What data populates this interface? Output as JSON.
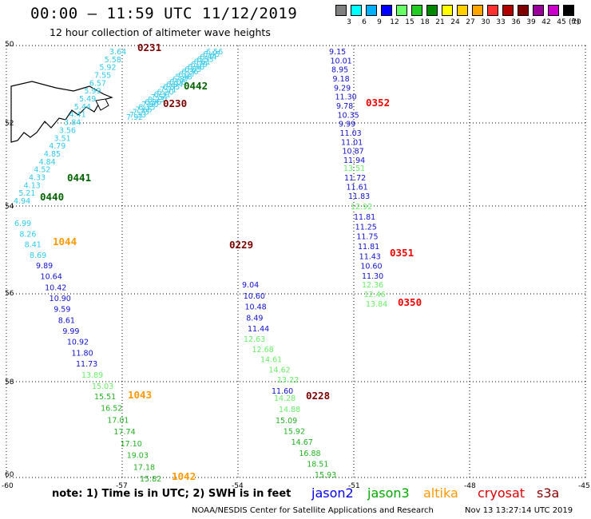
{
  "title": "00:00 – 11:59 UTC 11/12/2019",
  "subtitle": "12 hour collection of altimeter wave heights",
  "scale": {
    "labels": [
      "3",
      "6",
      "9",
      "12",
      "15",
      "18",
      "21",
      "24",
      "27",
      "30",
      "33",
      "36",
      "39",
      "42",
      "45",
      "70"
    ],
    "unit": "(ft)",
    "colors": [
      "#808080",
      "#00ffff",
      "#00b0ff",
      "#0000ff",
      "#66ff66",
      "#22cc22",
      "#008800",
      "#ffff00",
      "#ffd000",
      "#ffa500",
      "#ff3030",
      "#b00000",
      "#800000",
      "#990099",
      "#cc00cc",
      "#000000"
    ]
  },
  "axes": {
    "lat_labels": [
      "50",
      "52",
      "54",
      "56",
      "58",
      "60"
    ],
    "lon_labels": [
      "-57",
      "-54",
      "-51",
      "-48",
      "-45"
    ],
    "corner_left": "-60",
    "corner_right": "-45"
  },
  "colors": {
    "cyan": "#2fc8ea",
    "green_light": "#66ee66",
    "green": "#22b022",
    "blue": "#1010cc",
    "dark_red": "#7a0000",
    "red": "#ee0000",
    "orange": "#ff9900",
    "dark_green": "#006400"
  },
  "tracks": [
    {
      "color": "cyan",
      "values": [
        "3.64",
        "5.58",
        "5.92",
        "7.55",
        "6.57",
        "5.99",
        "5.49",
        "5.44",
        "4.41",
        "3.84",
        "3.56",
        "3.51",
        "4.79",
        "4.85",
        "4.84",
        "4.52",
        "4.33",
        "4.13",
        "5.21",
        "4.94"
      ]
    },
    {
      "color": "cyan",
      "values": [
        "6.56",
        "6.45",
        "6.44",
        "6.53",
        "6.61",
        "6.79",
        "6.48",
        "6.63",
        "6.36",
        "6.27",
        "5.48",
        "6.87",
        "6.08",
        "6.04",
        "6.55",
        "7.71",
        "6.20",
        "6.31",
        "7.54",
        "8.23",
        "6.86",
        "7.60",
        "8.15",
        "7.65",
        "7.73",
        "7.33",
        "7.92"
      ]
    },
    {
      "color": "blue",
      "values": [
        "9.04",
        "10.60",
        "10.48",
        "8.49",
        "11.44"
      ]
    },
    {
      "color": "green_light",
      "values": [
        "12.63",
        "12.68",
        "14.61",
        "14.62",
        "13.22"
      ]
    },
    {
      "color": "blue",
      "values": [
        "11.60"
      ]
    },
    {
      "color": "green_light",
      "values": [
        "14.28",
        "14.88"
      ]
    },
    {
      "color": "green",
      "values": [
        "15.09",
        "15.92",
        "14.67",
        "16.88",
        "18.51",
        "15.93"
      ]
    },
    {
      "color": "blue",
      "values": [
        "9.15",
        "10.01",
        "8.95",
        "9.18",
        "9.29",
        "11.30",
        "9.78",
        "10.35",
        "9.99",
        "11.03",
        "11.01",
        "10.87",
        "11.94"
      ]
    },
    {
      "color": "green_light",
      "values": [
        "13.51"
      ]
    },
    {
      "color": "blue",
      "values": [
        "11.72",
        "11.61",
        "11.83"
      ]
    },
    {
      "color": "green_light",
      "values": [
        "12.92"
      ]
    },
    {
      "color": "blue",
      "values": [
        "11.81",
        "11.25",
        "11.75",
        "11.81",
        "11.43",
        "10.60",
        "11.30"
      ]
    },
    {
      "color": "green_light",
      "values": [
        "12.36",
        "12.46",
        "13.84"
      ]
    },
    {
      "color": "cyan",
      "values": [
        "6.99",
        "8.26",
        "8.41",
        "8.69"
      ]
    },
    {
      "color": "blue",
      "values": [
        "9.89",
        "10.64",
        "10.42",
        "10.90",
        "9.59",
        "8.61",
        "9.99",
        "10.92",
        "11.80",
        "11.73"
      ]
    },
    {
      "color": "green_light",
      "values": [
        "13.89",
        "15.03"
      ]
    },
    {
      "color": "green",
      "values": [
        "15.51",
        "16.52",
        "17.01",
        "17.74",
        "17.10",
        "19.03",
        "17.18",
        "15.82"
      ]
    }
  ],
  "time_labels": [
    {
      "text": "0231",
      "color": "dark_red"
    },
    {
      "text": "0442",
      "color": "dark_green"
    },
    {
      "text": "0230",
      "color": "dark_red"
    },
    {
      "text": "0441",
      "color": "dark_green"
    },
    {
      "text": "0440",
      "color": "dark_green"
    },
    {
      "text": "0352",
      "color": "red"
    },
    {
      "text": "0229",
      "color": "dark_red"
    },
    {
      "text": "0351",
      "color": "red"
    },
    {
      "text": "0350",
      "color": "red"
    },
    {
      "text": "1044",
      "color": "orange"
    },
    {
      "text": "1043",
      "color": "orange"
    },
    {
      "text": "1042",
      "color": "orange"
    },
    {
      "text": "0228",
      "color": "dark_red"
    }
  ],
  "note": "note:  1) Time is in UTC;  2) SWH is in feet",
  "legend": [
    {
      "label": "jason2",
      "color": "#0000ee"
    },
    {
      "label": "jason3",
      "color": "#00aa00"
    },
    {
      "label": "altika",
      "color": "#ff9900"
    },
    {
      "label": "cryosat",
      "color": "#dd0000"
    },
    {
      "label": "s3a",
      "color": "#880000"
    }
  ],
  "credit": "NOAA/NESDIS Center for Satellite Applications and Research",
  "timestamp": "Nov 13 13:27:14 UTC 2019"
}
